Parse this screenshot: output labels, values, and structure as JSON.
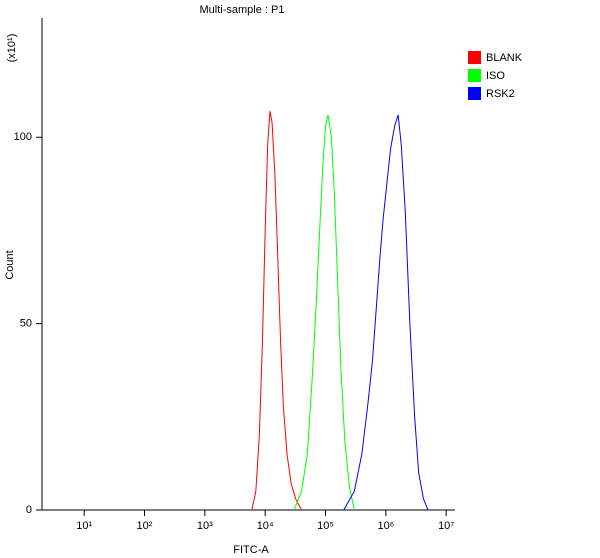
{
  "chart_data": {
    "type": "line",
    "title": "Multi-sample : P1",
    "xlabel": "FITC-A",
    "ylabel": "Count",
    "y_multiplier": "(x10¹)",
    "xscale": "log",
    "xlim": [
      2,
      14000000
    ],
    "ylim": [
      0,
      132
    ],
    "xticks": [
      {
        "value": 10,
        "label": "10¹"
      },
      {
        "value": 100,
        "label": "10²"
      },
      {
        "value": 1000,
        "label": "10³"
      },
      {
        "value": 10000,
        "label": "10⁴"
      },
      {
        "value": 100000,
        "label": "10⁵"
      },
      {
        "value": 1000000,
        "label": "10⁶"
      },
      {
        "value": 10000000,
        "label": "10⁷"
      }
    ],
    "yticks": [
      0,
      50,
      100
    ],
    "legend": "top-right",
    "series": [
      {
        "name": "BLANK",
        "color": "#ff0000",
        "x": [
          6000,
          7000,
          8000,
          9000,
          10000,
          11000,
          12000,
          13000,
          14500,
          16000,
          18000,
          20000,
          23000,
          27000,
          32000,
          40000
        ],
        "values": [
          0,
          5,
          20,
          45,
          75,
          98,
          107,
          104,
          90,
          70,
          45,
          28,
          15,
          7,
          3,
          0
        ]
      },
      {
        "name": "ISO",
        "color": "#00ff00",
        "x": [
          30000,
          40000,
          50000,
          60000,
          70000,
          80000,
          90000,
          100000,
          110000,
          125000,
          140000,
          160000,
          180000,
          210000,
          250000,
          300000
        ],
        "values": [
          0,
          5,
          15,
          35,
          55,
          75,
          92,
          103,
          106,
          100,
          85,
          60,
          38,
          18,
          6,
          0
        ]
      },
      {
        "name": "RSK2",
        "color": "#0000ff",
        "x": [
          200000,
          300000,
          400000,
          500000,
          600000,
          700000,
          800000,
          900000,
          1000000,
          1200000,
          1400000,
          1600000,
          1800000,
          2100000,
          2500000,
          3000000,
          3500000,
          4200000,
          5000000
        ],
        "values": [
          0,
          5,
          15,
          28,
          40,
          55,
          68,
          78,
          85,
          97,
          103,
          106,
          98,
          80,
          50,
          25,
          10,
          3,
          0
        ]
      }
    ]
  }
}
